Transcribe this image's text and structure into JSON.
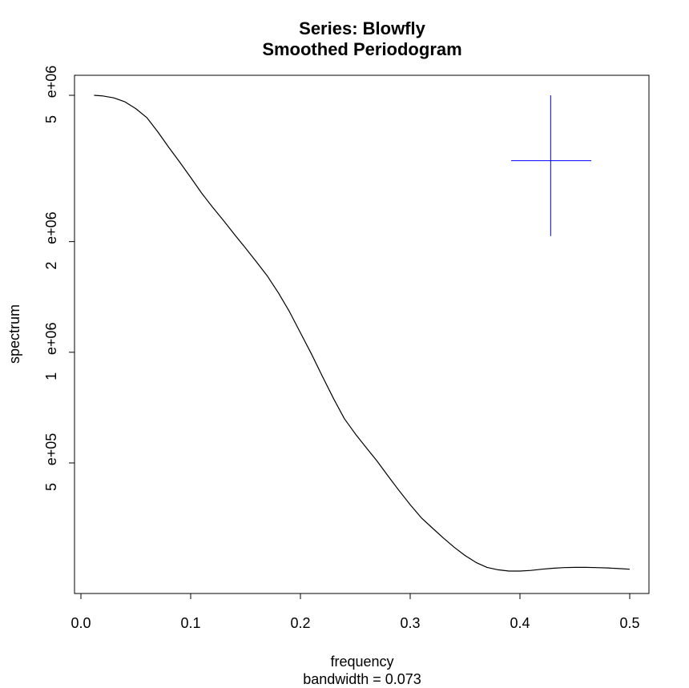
{
  "chart_data": {
    "type": "line",
    "title": "Series: Blowfly",
    "subtitle": "Smoothed Periodogram",
    "xlabel": "frequency",
    "xlabel_sub": "bandwidth = 0.073",
    "ylabel": "spectrum",
    "y_scale": "log",
    "xlim": [
      0.0,
      0.5
    ],
    "x_ticks": [
      0.0,
      0.1,
      0.2,
      0.3,
      0.4,
      0.5
    ],
    "x_tick_labels": [
      "0.0",
      "0.1",
      "0.2",
      "0.3",
      "0.4",
      "0.5"
    ],
    "y_ticks": [
      {
        "value": 500000,
        "mant": "5",
        "exp": "e+05"
      },
      {
        "value": 1000000,
        "mant": "1",
        "exp": "e+06"
      },
      {
        "value": 2000000,
        "mant": "2",
        "exp": "e+06"
      },
      {
        "value": 5000000,
        "mant": "5",
        "exp": "e+06"
      }
    ],
    "grid": false,
    "series": [
      {
        "color": "#000000",
        "x": [
          0.012,
          0.02,
          0.03,
          0.04,
          0.05,
          0.06,
          0.07,
          0.08,
          0.09,
          0.1,
          0.11,
          0.12,
          0.13,
          0.14,
          0.15,
          0.16,
          0.17,
          0.18,
          0.19,
          0.2,
          0.21,
          0.22,
          0.23,
          0.24,
          0.25,
          0.26,
          0.27,
          0.28,
          0.29,
          0.3,
          0.31,
          0.32,
          0.33,
          0.34,
          0.35,
          0.36,
          0.37,
          0.38,
          0.39,
          0.4,
          0.41,
          0.42,
          0.43,
          0.44,
          0.45,
          0.46,
          0.47,
          0.48,
          0.49,
          0.5
        ],
        "y": [
          5000000,
          4980000,
          4920000,
          4800000,
          4600000,
          4350000,
          3980000,
          3610000,
          3290000,
          2990000,
          2710000,
          2480000,
          2280000,
          2090000,
          1920000,
          1760000,
          1610000,
          1450000,
          1290000,
          1130000,
          990000,
          860000,
          750000,
          660000,
          600000,
          550000,
          505000,
          460000,
          420000,
          385000,
          355000,
          333000,
          313000,
          295000,
          280000,
          268000,
          260000,
          256000,
          254000,
          254000,
          255000,
          257000,
          258500,
          259500,
          260000,
          260000,
          259500,
          259000,
          258000,
          257000
        ]
      }
    ],
    "bandwidth_marker": {
      "color": "#0000ff",
      "center": {
        "x": 0.428,
        "y": 3320000
      },
      "x_range": [
        0.392,
        0.465
      ],
      "y_range": [
        2070000,
        5000000
      ]
    }
  }
}
